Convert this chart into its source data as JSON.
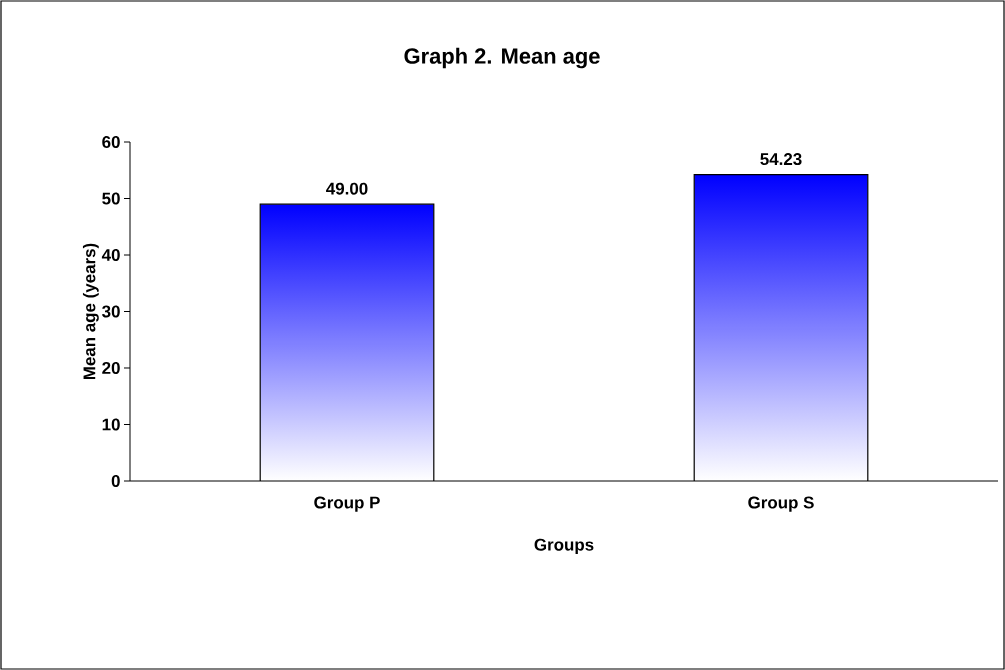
{
  "chart_data": {
    "type": "bar",
    "title": "Graph 2. Mean age",
    "xlabel": "Groups",
    "ylabel": "Mean age (years)",
    "categories": [
      "Group P",
      "Group S"
    ],
    "values": [
      49.0,
      54.23
    ],
    "value_labels": [
      "49.00",
      "54.23"
    ],
    "color": "#0000ff",
    "ylim": [
      0,
      60
    ],
    "yticks": [
      0,
      10,
      20,
      30,
      40,
      50,
      60
    ],
    "grid": false
  }
}
